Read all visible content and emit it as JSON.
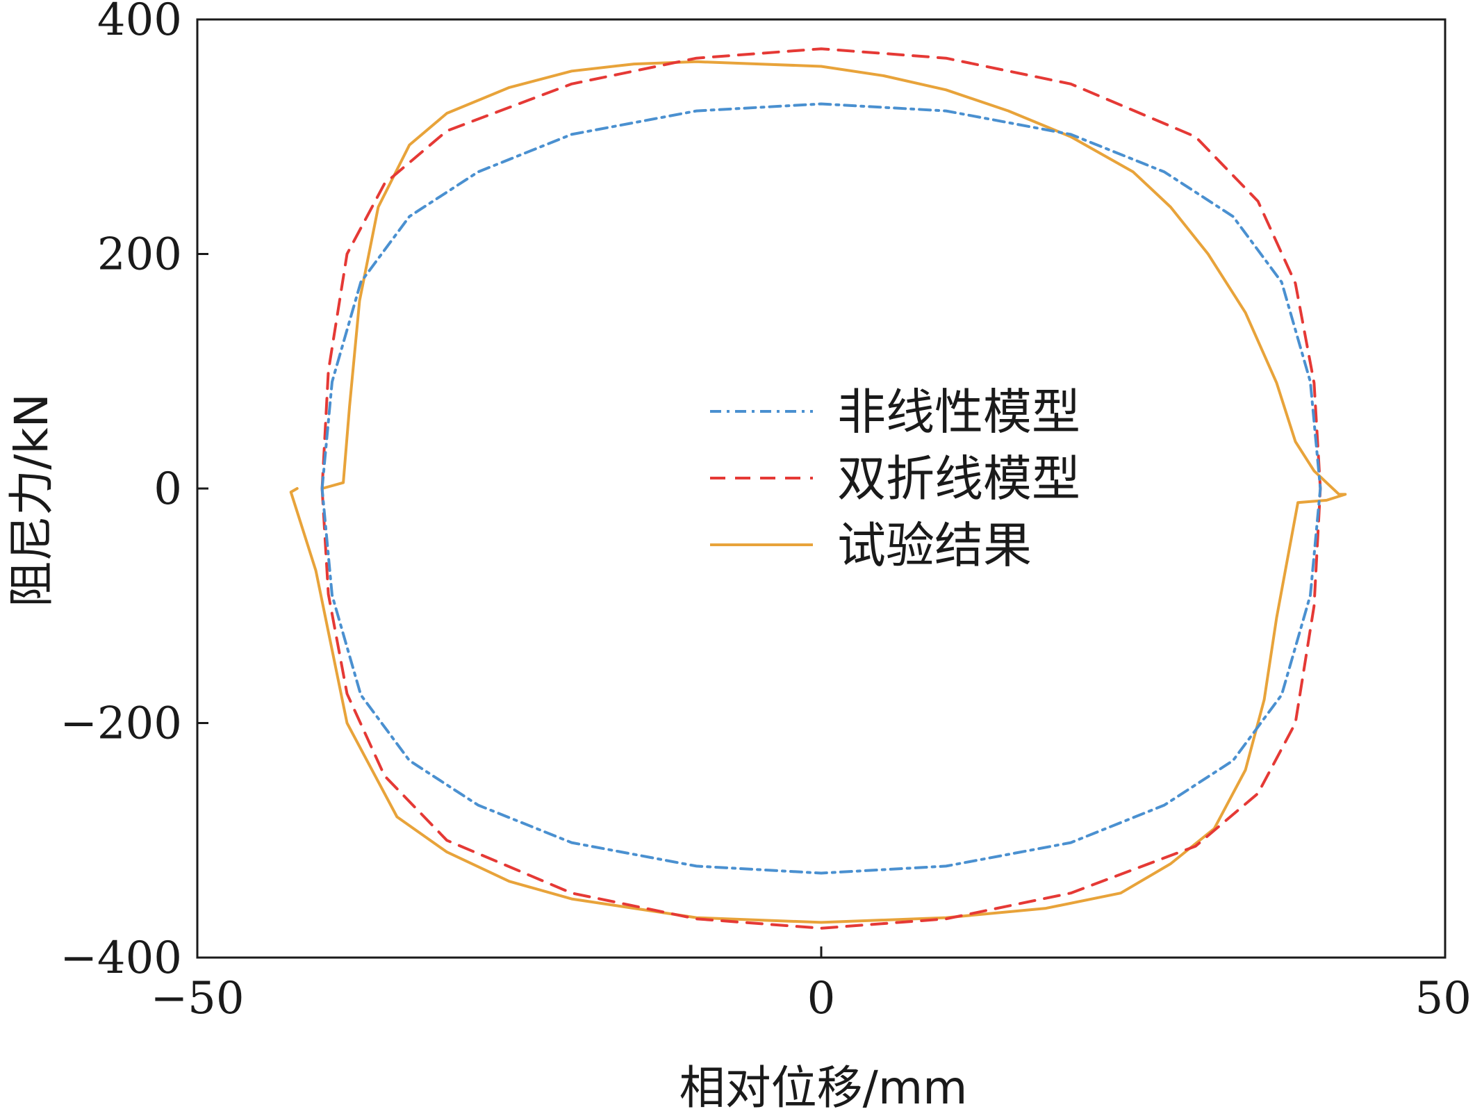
{
  "colors": {
    "nonlinear": "#4a90d0",
    "bilinear": "#e53935",
    "test": "#e8a33a",
    "axis": "#1a1a1a"
  },
  "chart_data": {
    "type": "line",
    "title": "",
    "xlabel": "相对位移/mm",
    "ylabel": "阻尼力/kN",
    "xlim": [
      -50,
      50
    ],
    "ylim": [
      -400,
      400
    ],
    "xticks": [
      -50,
      0,
      50
    ],
    "yticks": [
      400,
      200,
      0,
      -200,
      -400
    ],
    "xtick_labels": [
      "−50",
      "0",
      "50"
    ],
    "ytick_labels": [
      "400",
      "200",
      "0",
      "−200",
      "−400"
    ],
    "grid": false,
    "legend": {
      "position": "center-right"
    },
    "series": [
      {
        "name": "非线性模型",
        "style": "dash-dot",
        "x": [
          -40,
          -39.2,
          -36.9,
          -33,
          -27.5,
          -20,
          -10,
          0,
          10,
          20,
          27.5,
          33,
          36.9,
          39.2,
          40,
          39.2,
          36.9,
          33,
          27.5,
          20,
          10,
          0,
          -10,
          -20,
          -27.5,
          -33,
          -36.9,
          -39.2,
          -40
        ],
        "y": [
          0,
          91,
          176,
          232,
          270,
          302,
          322,
          328,
          322,
          302,
          270,
          232,
          176,
          91,
          0,
          -91,
          -176,
          -232,
          -270,
          -302,
          -322,
          -328,
          -322,
          -302,
          -270,
          -232,
          -176,
          -91,
          0
        ]
      },
      {
        "name": "双折线模型",
        "style": "dashed",
        "x": [
          -40,
          -39.5,
          -38,
          -35,
          -30,
          -20,
          -10,
          0,
          10,
          20,
          30,
          35,
          38,
          39.5,
          40,
          39.5,
          38,
          35,
          30,
          20,
          10,
          0,
          -10,
          -20,
          -30,
          -35,
          -38,
          -39.5,
          -40
        ],
        "y": [
          0,
          100,
          200,
          260,
          305,
          345,
          367,
          375,
          367,
          345,
          300,
          245,
          175,
          90,
          0,
          -100,
          -200,
          -260,
          -305,
          -345,
          -367,
          -375,
          -367,
          -345,
          -300,
          -245,
          -175,
          -90,
          0
        ]
      },
      {
        "name": "试验结果",
        "style": "solid",
        "x": [
          -40,
          -38.3,
          -37.8,
          -37,
          -35.5,
          -33,
          -30,
          -25,
          -20,
          -15,
          -10,
          -5,
          0,
          5,
          10,
          15,
          20,
          25,
          28,
          31,
          34,
          36.5,
          38,
          39.5,
          41.5,
          42,
          40.5,
          38.2,
          36.5,
          35.5,
          34,
          31.5,
          28,
          24,
          18,
          10,
          0,
          -10,
          -20,
          -25,
          -30,
          -34,
          -38,
          -40.5,
          -42.5,
          -42
        ],
        "y": [
          0,
          5,
          70,
          160,
          240,
          293,
          320,
          342,
          356,
          362,
          364,
          362,
          360,
          352,
          340,
          322,
          300,
          270,
          240,
          200,
          150,
          90,
          40,
          15,
          -5,
          -5,
          -10,
          -12,
          -110,
          -180,
          -240,
          -290,
          -320,
          -345,
          -358,
          -366,
          -370,
          -366,
          -350,
          -335,
          -310,
          -280,
          -200,
          -70,
          -3,
          0
        ]
      }
    ]
  }
}
